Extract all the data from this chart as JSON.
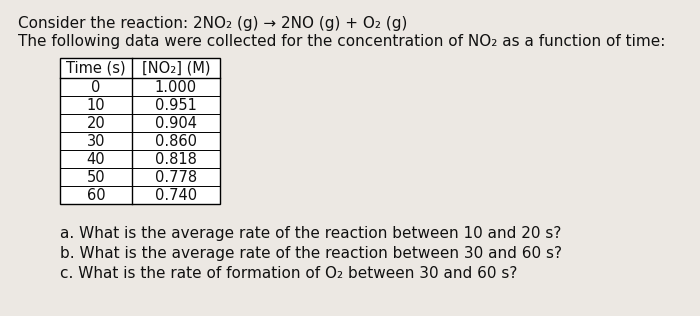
{
  "bg_color": "#ece8e3",
  "text_color": "#111111",
  "font_size": 11,
  "font_size_table": 10.5,
  "table_headers": [
    "Time (s)",
    "[NO₂] (M)"
  ],
  "table_data": [
    [
      "0",
      "1.000"
    ],
    [
      "10",
      "0.951"
    ],
    [
      "20",
      "0.904"
    ],
    [
      "30",
      "0.860"
    ],
    [
      "40",
      "0.818"
    ],
    [
      "50",
      "0.778"
    ],
    [
      "60",
      "0.740"
    ]
  ]
}
